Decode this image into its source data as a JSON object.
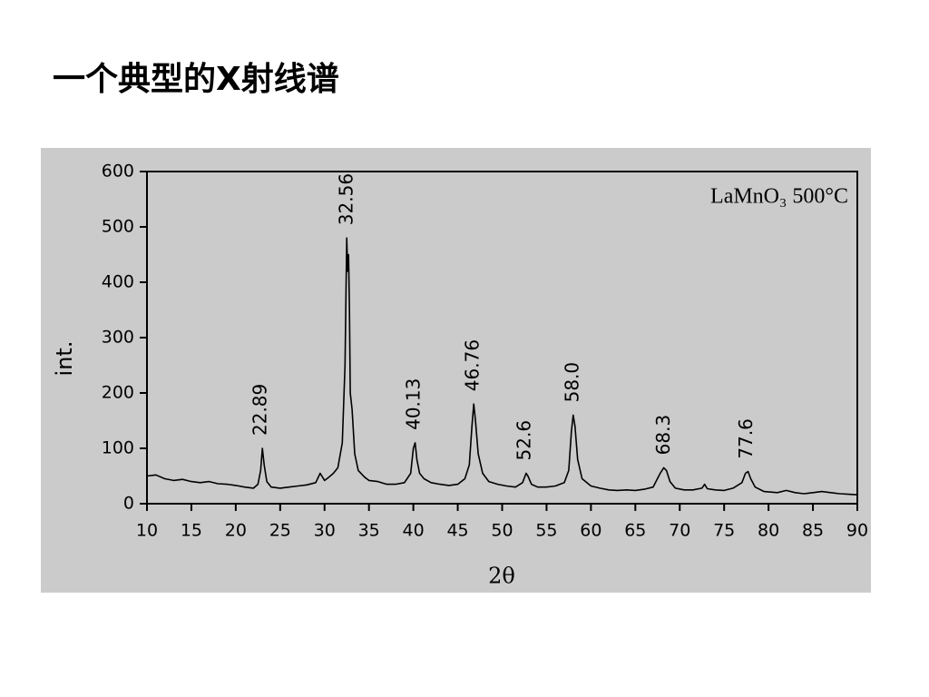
{
  "title": "一个典型的X射线谱",
  "chart_data": {
    "type": "line",
    "x_label": "2θ",
    "y_label": "int.",
    "legend_text": "LaMnO₃ 500°C",
    "color": "#000000",
    "xlim": [
      10,
      90
    ],
    "ylim": [
      0,
      600
    ],
    "xticks": [
      10,
      15,
      20,
      25,
      30,
      35,
      40,
      45,
      50,
      55,
      60,
      65,
      70,
      75,
      80,
      85,
      90
    ],
    "yticks": [
      0,
      100,
      200,
      300,
      400,
      500,
      600
    ],
    "x": [
      10,
      11,
      12,
      13,
      14,
      15,
      16,
      17,
      18,
      19,
      20,
      21,
      22,
      22.5,
      22.8,
      23.0,
      23.2,
      23.5,
      24,
      25,
      26,
      27,
      28,
      29,
      29.5,
      30,
      30.5,
      31,
      31.5,
      32,
      32.3,
      32.5,
      32.6,
      32.7,
      32.8,
      32.9,
      33.1,
      33.4,
      33.8,
      34.5,
      35,
      36,
      37,
      38,
      39,
      39.7,
      40.0,
      40.2,
      40.4,
      40.7,
      41.2,
      42,
      43,
      44,
      45,
      45.8,
      46.3,
      46.6,
      46.8,
      47.0,
      47.3,
      47.8,
      48.5,
      49.5,
      50.5,
      51.5,
      52.3,
      52.7,
      52.9,
      53.3,
      54,
      55,
      56,
      57,
      57.5,
      57.8,
      58.0,
      58.2,
      58.5,
      59,
      60,
      61,
      62,
      63,
      64,
      65,
      66,
      67,
      67.8,
      68.2,
      68.5,
      68.9,
      69.5,
      70.5,
      71.5,
      72.5,
      72.8,
      73.1,
      74,
      75,
      76,
      77,
      77.4,
      77.7,
      78,
      78.5,
      79.5,
      81,
      82,
      83,
      84,
      85,
      86,
      87,
      88,
      89,
      90
    ],
    "y": [
      50,
      52,
      45,
      42,
      44,
      40,
      38,
      40,
      36,
      35,
      33,
      30,
      28,
      35,
      60,
      100,
      70,
      40,
      30,
      28,
      30,
      32,
      34,
      38,
      55,
      42,
      48,
      55,
      65,
      110,
      250,
      480,
      420,
      450,
      350,
      200,
      170,
      90,
      60,
      48,
      42,
      40,
      35,
      35,
      38,
      55,
      100,
      110,
      80,
      55,
      45,
      38,
      35,
      33,
      35,
      45,
      70,
      140,
      180,
      150,
      90,
      55,
      40,
      35,
      32,
      30,
      38,
      55,
      50,
      35,
      30,
      30,
      32,
      38,
      60,
      130,
      160,
      140,
      80,
      45,
      32,
      28,
      25,
      24,
      25,
      24,
      26,
      30,
      55,
      65,
      60,
      40,
      28,
      25,
      25,
      28,
      35,
      27,
      25,
      24,
      28,
      38,
      55,
      58,
      45,
      30,
      22,
      20,
      24,
      20,
      18,
      20,
      22,
      20,
      18,
      17,
      16
    ],
    "annotations": [
      {
        "x": 22.89,
        "y": 100,
        "label": "22.89"
      },
      {
        "x": 32.56,
        "y": 480,
        "label": "32.56"
      },
      {
        "x": 40.13,
        "y": 110,
        "label": "40.13"
      },
      {
        "x": 46.76,
        "y": 180,
        "label": "46.76"
      },
      {
        "x": 52.6,
        "y": 55,
        "label": "52.6"
      },
      {
        "x": 58.0,
        "y": 160,
        "label": "58.0"
      },
      {
        "x": 68.3,
        "y": 65,
        "label": "68.3"
      },
      {
        "x": 77.6,
        "y": 58,
        "label": "77.6"
      }
    ]
  }
}
